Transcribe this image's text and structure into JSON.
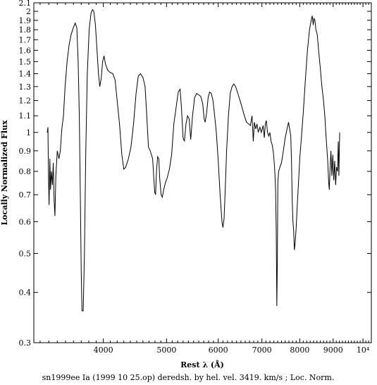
{
  "chart_data": {
    "type": "line",
    "xlabel": "Rest λ (Å)",
    "ylabel": "Locally Normalized Flux",
    "caption": "sn1999ee Ia (1999 10 25.op) deredsh. by hel. vel.  3419. km/s ;  Loc. Norm.",
    "xscale": "log",
    "yscale": "log",
    "xlim": [
      3130,
      10300
    ],
    "ylim": [
      0.3,
      2.1
    ],
    "grid": false,
    "x_ticks": [
      {
        "value": 4000,
        "label": "4000"
      },
      {
        "value": 5000,
        "label": "5000"
      },
      {
        "value": 6000,
        "label": "6000"
      },
      {
        "value": 7000,
        "label": "7000"
      },
      {
        "value": 8000,
        "label": "8000"
      },
      {
        "value": 9000,
        "label": "9000"
      },
      {
        "value": 10000,
        "label": "10⁴"
      }
    ],
    "y_ticks": [
      {
        "value": 0.3,
        "label": "0.3"
      },
      {
        "value": 0.4,
        "label": "0.4"
      },
      {
        "value": 0.5,
        "label": "0.5"
      },
      {
        "value": 0.6,
        "label": "0.6"
      },
      {
        "value": 0.7,
        "label": "0.7"
      },
      {
        "value": 0.8,
        "label": "0.8"
      },
      {
        "value": 0.9,
        "label": "0.9"
      },
      {
        "value": 1.0,
        "label": "1"
      },
      {
        "value": 1.1,
        "label": "1.1"
      },
      {
        "value": 1.2,
        "label": "1.2"
      },
      {
        "value": 1.3,
        "label": "1.3"
      },
      {
        "value": 1.4,
        "label": "1.4"
      },
      {
        "value": 1.5,
        "label": "1.5"
      },
      {
        "value": 1.6,
        "label": "1.6"
      },
      {
        "value": 1.7,
        "label": "1.7"
      },
      {
        "value": 1.8,
        "label": "1.8"
      },
      {
        "value": 1.9,
        "label": "1.9"
      },
      {
        "value": 2.0,
        "label": "2"
      },
      {
        "value": 2.1,
        "label": "2.1"
      }
    ],
    "series": [
      {
        "color": "#000000",
        "points": [
          [
            3282,
            1.0
          ],
          [
            3290,
            1.03
          ],
          [
            3295,
            0.8
          ],
          [
            3303,
            0.66
          ],
          [
            3312,
            0.86
          ],
          [
            3320,
            0.72
          ],
          [
            3330,
            0.8
          ],
          [
            3342,
            0.74
          ],
          [
            3352,
            0.84
          ],
          [
            3362,
            0.68
          ],
          [
            3372,
            0.62
          ],
          [
            3383,
            0.78
          ],
          [
            3400,
            0.9
          ],
          [
            3420,
            0.86
          ],
          [
            3437,
            0.9
          ],
          [
            3455,
            1.02
          ],
          [
            3475,
            1.1
          ],
          [
            3495,
            1.3
          ],
          [
            3520,
            1.5
          ],
          [
            3545,
            1.65
          ],
          [
            3570,
            1.75
          ],
          [
            3598,
            1.82
          ],
          [
            3622,
            1.87
          ],
          [
            3643,
            1.82
          ],
          [
            3660,
            1.5
          ],
          [
            3675,
            1.1
          ],
          [
            3688,
            0.7
          ],
          [
            3700,
            0.45
          ],
          [
            3710,
            0.36
          ],
          [
            3726,
            0.36
          ],
          [
            3742,
            0.5
          ],
          [
            3760,
            0.9
          ],
          [
            3780,
            1.4
          ],
          [
            3805,
            1.8
          ],
          [
            3830,
            1.98
          ],
          [
            3850,
            2.02
          ],
          [
            3868,
            2.0
          ],
          [
            3890,
            1.85
          ],
          [
            3912,
            1.6
          ],
          [
            3932,
            1.4
          ],
          [
            3950,
            1.3
          ],
          [
            3970,
            1.36
          ],
          [
            3990,
            1.5
          ],
          [
            4010,
            1.55
          ],
          [
            4030,
            1.48
          ],
          [
            4060,
            1.43
          ],
          [
            4095,
            1.41
          ],
          [
            4135,
            1.4
          ],
          [
            4170,
            1.35
          ],
          [
            4200,
            1.2
          ],
          [
            4235,
            1.05
          ],
          [
            4270,
            0.88
          ],
          [
            4300,
            0.81
          ],
          [
            4330,
            0.82
          ],
          [
            4370,
            0.86
          ],
          [
            4410,
            0.92
          ],
          [
            4450,
            1.05
          ],
          [
            4490,
            1.25
          ],
          [
            4525,
            1.38
          ],
          [
            4560,
            1.4
          ],
          [
            4600,
            1.37
          ],
          [
            4635,
            1.3
          ],
          [
            4660,
            1.12
          ],
          [
            4690,
            0.92
          ],
          [
            4720,
            0.9
          ],
          [
            4760,
            0.86
          ],
          [
            4795,
            0.71
          ],
          [
            4810,
            0.7
          ],
          [
            4825,
            0.8
          ],
          [
            4845,
            0.87
          ],
          [
            4865,
            0.86
          ],
          [
            4880,
            0.77
          ],
          [
            4905,
            0.7
          ],
          [
            4925,
            0.69
          ],
          [
            4950,
            0.72
          ],
          [
            4980,
            0.75
          ],
          [
            5010,
            0.77
          ],
          [
            5050,
            0.81
          ],
          [
            5090,
            0.88
          ],
          [
            5130,
            1.05
          ],
          [
            5170,
            1.15
          ],
          [
            5210,
            1.26
          ],
          [
            5245,
            1.28
          ],
          [
            5270,
            1.15
          ],
          [
            5300,
            0.97
          ],
          [
            5325,
            0.95
          ],
          [
            5355,
            1.05
          ],
          [
            5385,
            1.1
          ],
          [
            5415,
            1.08
          ],
          [
            5445,
            0.96
          ],
          [
            5480,
            1.1
          ],
          [
            5520,
            1.22
          ],
          [
            5560,
            1.25
          ],
          [
            5600,
            1.24
          ],
          [
            5640,
            1.23
          ],
          [
            5680,
            1.18
          ],
          [
            5710,
            1.08
          ],
          [
            5730,
            1.06
          ],
          [
            5760,
            1.12
          ],
          [
            5790,
            1.22
          ],
          [
            5820,
            1.26
          ],
          [
            5855,
            1.25
          ],
          [
            5890,
            1.2
          ],
          [
            5925,
            1.1
          ],
          [
            5960,
            1.0
          ],
          [
            6000,
            0.85
          ],
          [
            6040,
            0.7
          ],
          [
            6080,
            0.6
          ],
          [
            6100,
            0.58
          ],
          [
            6125,
            0.61
          ],
          [
            6150,
            0.72
          ],
          [
            6180,
            0.9
          ],
          [
            6220,
            1.1
          ],
          [
            6260,
            1.25
          ],
          [
            6300,
            1.3
          ],
          [
            6340,
            1.32
          ],
          [
            6380,
            1.3
          ],
          [
            6430,
            1.25
          ],
          [
            6480,
            1.2
          ],
          [
            6530,
            1.15
          ],
          [
            6580,
            1.1
          ],
          [
            6630,
            1.06
          ],
          [
            6680,
            1.05
          ],
          [
            6720,
            1.04
          ],
          [
            6760,
            1.1
          ],
          [
            6790,
            0.95
          ],
          [
            6815,
            1.06
          ],
          [
            6850,
            1.02
          ],
          [
            6880,
            1.05
          ],
          [
            6910,
            1.0
          ],
          [
            6950,
            1.03
          ],
          [
            6985,
            1.0
          ],
          [
            7030,
            1.04
          ],
          [
            7060,
            0.97
          ],
          [
            7085,
            1.05
          ],
          [
            7110,
            1.07
          ],
          [
            7140,
            1.0
          ],
          [
            7170,
            0.98
          ],
          [
            7200,
            1.0
          ],
          [
            7230,
            0.95
          ],
          [
            7260,
            0.93
          ],
          [
            7290,
            0.89
          ],
          [
            7320,
            0.82
          ],
          [
            7345,
            0.73
          ],
          [
            7362,
            0.58
          ],
          [
            7378,
            0.37
          ],
          [
            7392,
            0.48
          ],
          [
            7405,
            0.75
          ],
          [
            7425,
            0.8
          ],
          [
            7460,
            0.82
          ],
          [
            7500,
            0.84
          ],
          [
            7550,
            0.9
          ],
          [
            7600,
            0.97
          ],
          [
            7650,
            1.02
          ],
          [
            7690,
            1.06
          ],
          [
            7720,
            1.02
          ],
          [
            7750,
            0.98
          ],
          [
            7770,
            0.85
          ],
          [
            7790,
            0.68
          ],
          [
            7810,
            0.6
          ],
          [
            7830,
            0.57
          ],
          [
            7850,
            0.51
          ],
          [
            7870,
            0.53
          ],
          [
            7900,
            0.58
          ],
          [
            7930,
            0.66
          ],
          [
            7965,
            0.75
          ],
          [
            8000,
            0.86
          ],
          [
            8050,
            0.98
          ],
          [
            8100,
            1.12
          ],
          [
            8160,
            1.35
          ],
          [
            8220,
            1.6
          ],
          [
            8280,
            1.8
          ],
          [
            8330,
            1.9
          ],
          [
            8360,
            1.95
          ],
          [
            8390,
            1.85
          ],
          [
            8410,
            1.92
          ],
          [
            8440,
            1.9
          ],
          [
            8470,
            1.8
          ],
          [
            8510,
            1.75
          ],
          [
            8550,
            1.6
          ],
          [
            8600,
            1.45
          ],
          [
            8650,
            1.3
          ],
          [
            8700,
            1.2
          ],
          [
            8740,
            1.1
          ],
          [
            8770,
            1.0
          ],
          [
            8800,
            0.92
          ],
          [
            8830,
            0.85
          ],
          [
            8860,
            0.75
          ],
          [
            8880,
            0.72
          ],
          [
            8900,
            0.8
          ],
          [
            8930,
            0.9
          ],
          [
            8960,
            0.78
          ],
          [
            8990,
            0.88
          ],
          [
            9020,
            0.76
          ],
          [
            9050,
            0.85
          ],
          [
            9080,
            0.74
          ],
          [
            9110,
            0.82
          ],
          [
            9140,
            0.8
          ],
          [
            9165,
            0.95
          ],
          [
            9185,
            0.78
          ],
          [
            9210,
            1.0
          ]
        ]
      }
    ]
  }
}
